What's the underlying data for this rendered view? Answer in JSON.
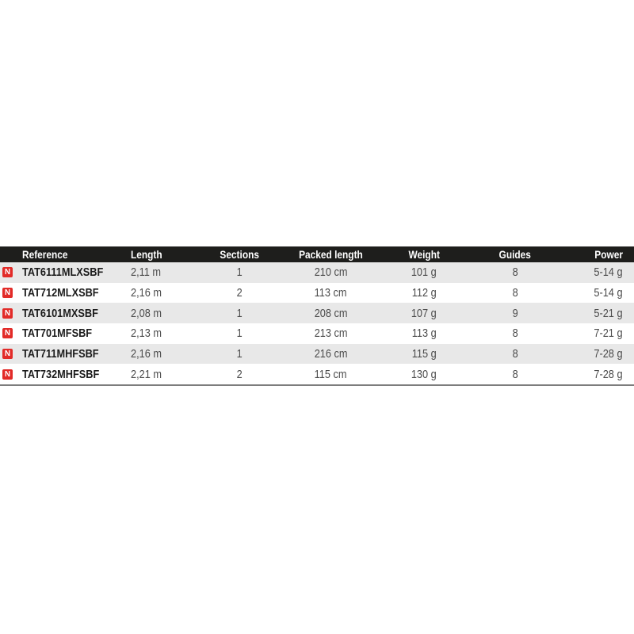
{
  "page": {
    "background": "#ffffff"
  },
  "table": {
    "columns": [
      {
        "key": "reference",
        "label": "Reference"
      },
      {
        "key": "length",
        "label": "Length"
      },
      {
        "key": "sections",
        "label": "Sections"
      },
      {
        "key": "packed_length",
        "label": "Packed length"
      },
      {
        "key": "weight",
        "label": "Weight"
      },
      {
        "key": "guides",
        "label": "Guides"
      },
      {
        "key": "power",
        "label": "Power"
      }
    ],
    "new_badge": {
      "label": "N",
      "color": "#e22b28"
    },
    "rows": [
      {
        "is_new": true,
        "reference": "TAT6111MLXSBF",
        "length": "2,11 m",
        "sections": "1",
        "packed_length": "210 cm",
        "weight": "101 g",
        "guides": "8",
        "power": "5-14 g"
      },
      {
        "is_new": true,
        "reference": "TAT712MLXSBF",
        "length": "2,16 m",
        "sections": "2",
        "packed_length": "113 cm",
        "weight": "112 g",
        "guides": "8",
        "power": "5-14 g"
      },
      {
        "is_new": true,
        "reference": "TAT6101MXSBF",
        "length": "2,08 m",
        "sections": "1",
        "packed_length": "208 cm",
        "weight": "107 g",
        "guides": "9",
        "power": "5-21 g"
      },
      {
        "is_new": true,
        "reference": "TAT701MFSBF",
        "length": "2,13 m",
        "sections": "1",
        "packed_length": "213 cm",
        "weight": "113 g",
        "guides": "8",
        "power": "7-21 g"
      },
      {
        "is_new": true,
        "reference": "TAT711MHFSBF",
        "length": "2,16 m",
        "sections": "1",
        "packed_length": "216 cm",
        "weight": "115 g",
        "guides": "8",
        "power": "7-28 g"
      },
      {
        "is_new": true,
        "reference": "TAT732MHFSBF",
        "length": "2,21 m",
        "sections": "2",
        "packed_length": "115 cm",
        "weight": "130 g",
        "guides": "8",
        "power": "7-28 g"
      }
    ],
    "colors": {
      "header_bg": "#1e1e1c",
      "header_text": "#ffffff",
      "stripe_bg": "#e8e8e8",
      "row_bg": "#ffffff",
      "reference_text": "#1b1b1b",
      "cell_text": "#4b4b4b",
      "badge_red": "#e22b28",
      "bottom_border": "#7d7d7d"
    }
  },
  "chart_data": {
    "type": "table",
    "columns": [
      "Reference",
      "Length",
      "Sections",
      "Packed length",
      "Weight",
      "Guides",
      "Power"
    ],
    "rows": [
      [
        "TAT6111MLXSBF",
        "2,11 m",
        "1",
        "210 cm",
        "101 g",
        "8",
        "5-14 g"
      ],
      [
        "TAT712MLXSBF",
        "2,16 m",
        "2",
        "113 cm",
        "112 g",
        "8",
        "5-14 g"
      ],
      [
        "TAT6101MXSBF",
        "2,08 m",
        "1",
        "208 cm",
        "107 g",
        "9",
        "5-21 g"
      ],
      [
        "TAT701MFSBF",
        "2,13 m",
        "1",
        "213 cm",
        "113 g",
        "8",
        "7-21 g"
      ],
      [
        "TAT711MHFSBF",
        "2,16 m",
        "1",
        "216 cm",
        "115 g",
        "8",
        "7-28 g"
      ],
      [
        "TAT732MHFSBF",
        "2,21 m",
        "2",
        "115 cm",
        "130 g",
        "8",
        "7-28 g"
      ]
    ]
  }
}
